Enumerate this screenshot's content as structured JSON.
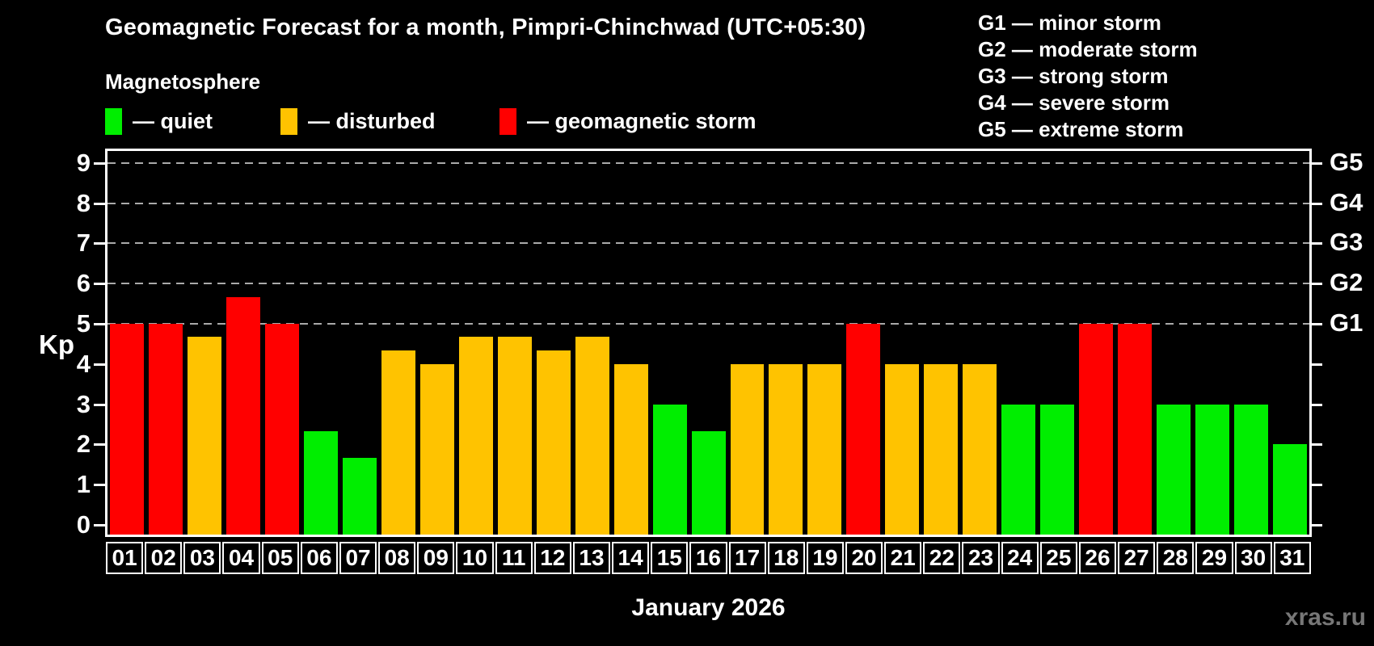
{
  "title": "Geomagnetic Forecast for a month, Pimpri-Chinchwad (UTC+05:30)",
  "subtitle": "Magnetosphere",
  "watermark": "xras.ru",
  "legend": {
    "quiet": {
      "label": "— quiet",
      "color": "#00ee00"
    },
    "disturbed": {
      "label": "— disturbed",
      "color": "#ffc300"
    },
    "storm": {
      "label": "— geomagnetic storm",
      "color": "#ff0000"
    }
  },
  "g_scale_legend": [
    "G1 — minor storm",
    "G2 — moderate storm",
    "G3 — strong storm",
    "G4 — severe storm",
    "G5 — extreme storm"
  ],
  "axes": {
    "y_label": "Kp",
    "x_label": "January 2026",
    "y_ticks": [
      0,
      1,
      2,
      3,
      4,
      5,
      6,
      7,
      8,
      9
    ],
    "right_axis": [
      {
        "label": "G5",
        "kp": 9
      },
      {
        "label": "G4",
        "kp": 8
      },
      {
        "label": "G3",
        "kp": 7
      },
      {
        "label": "G2",
        "kp": 6
      },
      {
        "label": "G1",
        "kp": 5
      }
    ]
  },
  "chart_data": {
    "type": "bar",
    "title": "Geomagnetic Forecast for a month, Pimpri-Chinchwad (UTC+05:30)",
    "xlabel": "January 2026",
    "ylabel": "Kp",
    "ylim": [
      0,
      9.5
    ],
    "grid": "dashed horizontal lines at Kp 5-9 (G1-G5 storm levels)",
    "legend_position": "top-left swatches; G-scale text top-right",
    "categories": [
      "01",
      "02",
      "03",
      "04",
      "05",
      "06",
      "07",
      "08",
      "09",
      "10",
      "11",
      "12",
      "13",
      "14",
      "15",
      "16",
      "17",
      "18",
      "19",
      "20",
      "21",
      "22",
      "23",
      "24",
      "25",
      "26",
      "27",
      "28",
      "29",
      "30",
      "31"
    ],
    "values": [
      5.0,
      5.0,
      4.67,
      5.67,
      5.0,
      2.33,
      1.67,
      4.33,
      4.0,
      4.67,
      4.67,
      4.33,
      4.67,
      4.0,
      3.0,
      2.33,
      4.0,
      4.0,
      4.0,
      5.0,
      4.0,
      4.0,
      4.0,
      3.0,
      3.0,
      5.0,
      5.0,
      3.0,
      3.0,
      3.0,
      2.0
    ],
    "states": [
      "storm",
      "storm",
      "disturbed",
      "storm",
      "storm",
      "quiet",
      "quiet",
      "disturbed",
      "disturbed",
      "disturbed",
      "disturbed",
      "disturbed",
      "disturbed",
      "disturbed",
      "quiet",
      "quiet",
      "disturbed",
      "disturbed",
      "disturbed",
      "storm",
      "disturbed",
      "disturbed",
      "disturbed",
      "quiet",
      "quiet",
      "storm",
      "storm",
      "quiet",
      "quiet",
      "quiet",
      "quiet"
    ]
  }
}
